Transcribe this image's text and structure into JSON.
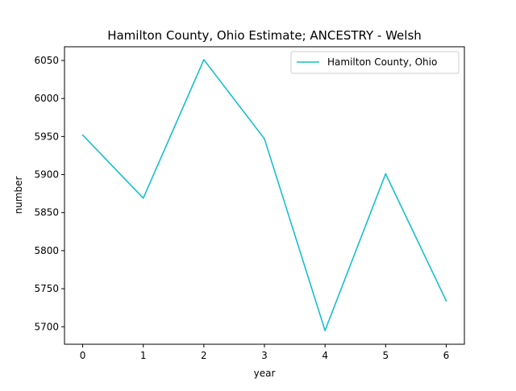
{
  "chart_data": {
    "type": "line",
    "title": "Hamilton County, Ohio Estimate; ANCESTRY - Welsh",
    "xlabel": "year",
    "ylabel": "number",
    "x": [
      0,
      1,
      2,
      3,
      4,
      5,
      6
    ],
    "series": [
      {
        "name": "Hamilton County, Ohio",
        "color": "#17becf",
        "values": [
          5952,
          5869,
          6051,
          5947,
          5695,
          5901,
          5734
        ]
      }
    ],
    "xlim": [
      -0.3,
      6.3
    ],
    "ylim": [
      5677,
      6068
    ],
    "xticks": [
      0,
      1,
      2,
      3,
      4,
      5,
      6
    ],
    "yticks": [
      5700,
      5750,
      5800,
      5850,
      5900,
      5950,
      6000,
      6050
    ],
    "grid": false,
    "legend_position": "upper right"
  }
}
